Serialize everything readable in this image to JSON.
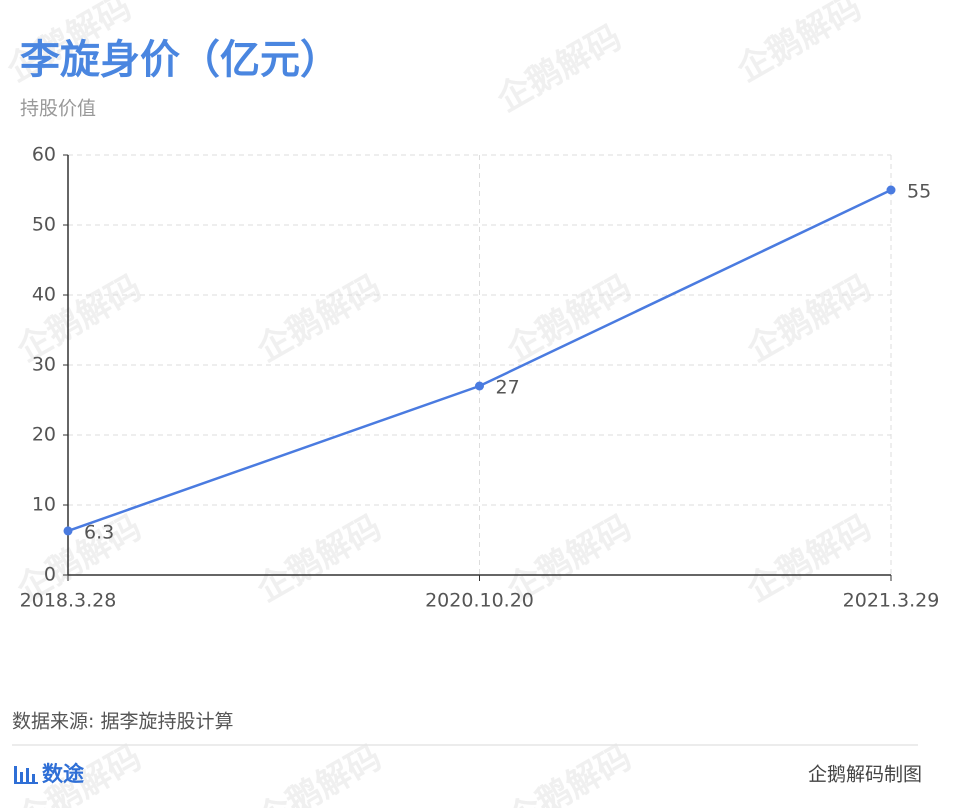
{
  "chart_data": {
    "type": "line",
    "title": "李旋身价（亿元）",
    "subtitle": "持股价值",
    "categories": [
      "2018.3.28",
      "2020.10.20",
      "2021.3.29"
    ],
    "values": [
      6.3,
      27,
      55
    ],
    "color": "#4a7be0",
    "ylim": [
      0,
      60
    ],
    "yticks": [
      0,
      10,
      20,
      30,
      40,
      50,
      60
    ],
    "grid": true,
    "source": "数据来源: 据李旋持股计算",
    "brand": "数途",
    "credit": "企鹅解码制图",
    "watermark": "企鹅解码"
  }
}
